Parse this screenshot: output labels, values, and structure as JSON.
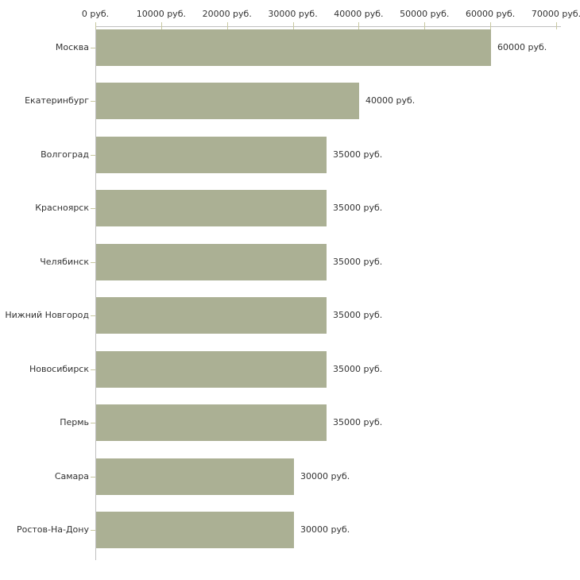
{
  "chart_data": {
    "type": "bar",
    "orientation": "horizontal",
    "title": "",
    "xlabel": "",
    "ylabel": "",
    "unit": "руб.",
    "categories": [
      "Москва",
      "Екатеринбург",
      "Волгоград",
      "Красноярск",
      "Челябинск",
      "Нижний Новгород",
      "Новосибирск",
      "Пермь",
      "Самара",
      "Ростов-На-Дону"
    ],
    "values": [
      60000,
      40000,
      35000,
      35000,
      35000,
      35000,
      35000,
      35000,
      30000,
      30000
    ],
    "value_labels": [
      "60000 руб.",
      "40000 руб.",
      "35000 руб.",
      "35000 руб.",
      "35000 руб.",
      "35000 руб.",
      "35000 руб.",
      "35000 руб.",
      "30000 руб.",
      "30000 руб."
    ],
    "x_ticks": [
      0,
      10000,
      20000,
      30000,
      40000,
      50000,
      60000,
      70000
    ],
    "x_tick_labels": [
      "0 руб.",
      "10000 руб.",
      "20000 руб.",
      "30000 руб.",
      "40000 руб.",
      "50000 руб.",
      "60000 руб.",
      "70000 руб."
    ],
    "xlim": [
      0,
      70000
    ],
    "grid": false,
    "legend": "none",
    "colors": {
      "bar": "#abb094",
      "axis": "#c0c0c0",
      "tick": "#c8c8a0",
      "text": "#333333",
      "background": "#ffffff"
    }
  }
}
